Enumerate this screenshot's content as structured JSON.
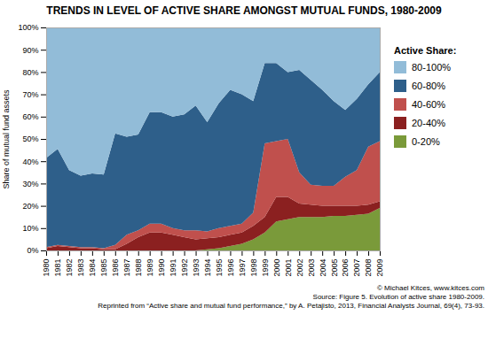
{
  "chart_data": {
    "type": "area",
    "stacked": true,
    "title": "TRENDS IN LEVEL OF ACTIVE SHARE AMONGST MUTUAL FUNDS, 1980-2009",
    "ylabel": "Share of mutual fund assets",
    "legend_title": "Active Share:",
    "legend": "right",
    "annotations": [
      "© Michael Kitces, www.kitces.com",
      "Source: Figure 5. Evolution of active share 1980-2009.",
      "Reprinted from “Active share and mutual fund performance,” by A. Petajisto, 2013, Financial Analysts Journal, 69(4), 73-93."
    ],
    "x": [
      1980,
      1981,
      1982,
      1983,
      1984,
      1985,
      1986,
      1987,
      1988,
      1989,
      1990,
      1991,
      1992,
      1993,
      1994,
      1995,
      1996,
      1997,
      1998,
      1999,
      2000,
      2001,
      2002,
      2003,
      2004,
      2005,
      2006,
      2007,
      2008,
      2009
    ],
    "xlim": [
      1980,
      2009
    ],
    "xticks": [
      1980,
      1981,
      1982,
      1983,
      1984,
      1985,
      1986,
      1987,
      1988,
      1989,
      1990,
      1991,
      1992,
      1993,
      1994,
      1995,
      1996,
      1997,
      1998,
      1999,
      2000,
      2001,
      2002,
      2003,
      2004,
      2005,
      2006,
      2007,
      2008,
      2009
    ],
    "ylim": [
      0,
      100
    ],
    "yticks": [
      {
        "value": 0,
        "label": "0%"
      },
      {
        "value": 10,
        "label": "10%"
      },
      {
        "value": 20,
        "label": "20%"
      },
      {
        "value": 30,
        "label": "30%"
      },
      {
        "value": 40,
        "label": "40%"
      },
      {
        "value": 50,
        "label": "50%"
      },
      {
        "value": 60,
        "label": "60%"
      },
      {
        "value": 70,
        "label": "70%"
      },
      {
        "value": 80,
        "label": "80%"
      },
      {
        "value": 90,
        "label": "90%"
      },
      {
        "value": 100,
        "label": "100%"
      }
    ],
    "grid": true,
    "series": [
      {
        "name": "0-20%",
        "color": "#7a9a3a",
        "values": [
          0.0,
          0.0,
          0.0,
          0.0,
          0.0,
          0.0,
          0.0,
          0.0,
          0.0,
          0.0,
          0.0,
          0.0,
          0.0,
          0.0,
          0.5,
          1.0,
          2.0,
          3.0,
          5.0,
          8.0,
          13.0,
          14.0,
          15.0,
          15.0,
          15.0,
          15.5,
          15.5,
          16.0,
          16.5,
          19.0
        ]
      },
      {
        "name": "20-40%",
        "color": "#8b2020",
        "values": [
          1.0,
          2.0,
          1.5,
          1.0,
          1.0,
          0.5,
          0.5,
          3.0,
          6.0,
          8.0,
          8.0,
          7.0,
          6.0,
          5.0,
          5.0,
          5.0,
          5.0,
          5.0,
          6.0,
          7.0,
          11.0,
          10.0,
          6.0,
          5.5,
          5.0,
          4.5,
          4.5,
          4.0,
          4.0,
          3.0
        ]
      },
      {
        "name": "40-60%",
        "color": "#c0504d",
        "values": [
          0.5,
          0.5,
          0.5,
          0.5,
          0.5,
          0.5,
          2.0,
          4.0,
          3.0,
          4.0,
          4.0,
          3.0,
          3.0,
          4.0,
          3.0,
          4.0,
          4.0,
          4.0,
          6.0,
          33.0,
          25.0,
          26.0,
          14.0,
          9.0,
          9.0,
          9.0,
          13.0,
          16.0,
          26.0,
          27.0
        ]
      },
      {
        "name": "60-80%",
        "color": "#2e5f8a",
        "values": [
          40.0,
          43.0,
          34.0,
          32.0,
          33.0,
          33.0,
          50.0,
          44.0,
          43.0,
          50.0,
          50.0,
          50.0,
          52.0,
          56.0,
          49.0,
          56.0,
          61.0,
          58.0,
          50.0,
          36.0,
          35.0,
          30.0,
          46.0,
          47.0,
          43.0,
          38.0,
          30.0,
          32.0,
          28.0,
          31.0
        ]
      },
      {
        "name": "80-100%",
        "color": "#92bcd8",
        "values": [
          58.5,
          54.5,
          64.0,
          66.5,
          65.5,
          66.0,
          47.5,
          49.0,
          48.0,
          38.0,
          38.0,
          40.0,
          39.0,
          35.0,
          42.5,
          34.0,
          28.0,
          30.0,
          33.0,
          16.0,
          16.0,
          20.0,
          19.0,
          23.5,
          28.0,
          33.0,
          37.0,
          32.0,
          25.5,
          20.0
        ]
      }
    ]
  }
}
